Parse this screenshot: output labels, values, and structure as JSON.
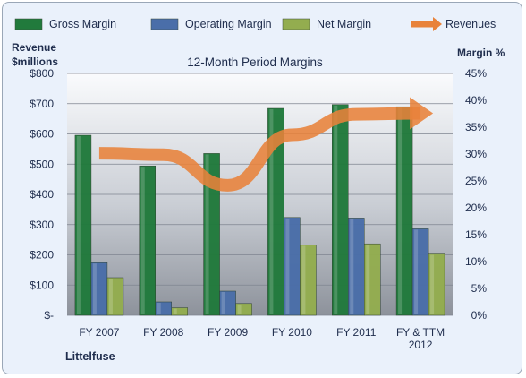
{
  "chart_data": {
    "type": "bar",
    "title": "12-Month Period Margins",
    "left_axis_label_line1": "Revenue",
    "left_axis_label_line2": "$millions",
    "right_axis_label": "Margin %",
    "company": "Littelfuse",
    "categories": [
      [
        "FY 2007"
      ],
      [
        "FY 2008"
      ],
      [
        "FY 2009"
      ],
      [
        "FY 2010"
      ],
      [
        "FY 2011"
      ],
      [
        "FY & TTM",
        "2012"
      ]
    ],
    "left_axis": {
      "ylim": [
        0,
        800
      ],
      "ticks": [
        0,
        100,
        200,
        300,
        400,
        500,
        600,
        700,
        800
      ],
      "tick_labels": [
        "$-",
        "$100",
        "$200",
        "$300",
        "$400",
        "$500",
        "$600",
        "$700",
        "$800"
      ]
    },
    "right_axis": {
      "ylim": [
        0,
        45
      ],
      "ticks": [
        0,
        5,
        10,
        15,
        20,
        25,
        30,
        35,
        40,
        45
      ],
      "tick_labels": [
        "0%",
        "5%",
        "10%",
        "15%",
        "20%",
        "25%",
        "30%",
        "35%",
        "40%",
        "45%"
      ]
    },
    "series": [
      {
        "name": "Gross Margin",
        "axis": "right",
        "color": "#217a3c",
        "values": [
          33.5,
          27.8,
          30.1,
          38.5,
          39.2,
          38.8
        ]
      },
      {
        "name": "Operating Margin",
        "axis": "right",
        "color": "#4a6ea9",
        "values": [
          9.8,
          2.5,
          4.5,
          18.2,
          18.1,
          16.1
        ]
      },
      {
        "name": "Net Margin",
        "axis": "right",
        "color": "#93ad4f",
        "values": [
          7.0,
          1.4,
          2.2,
          13.1,
          13.3,
          11.4
        ]
      },
      {
        "name": "Revenues",
        "axis": "left",
        "type": "line",
        "color": "#e8823a",
        "values": [
          536,
          531,
          430,
          597,
          665,
          668
        ]
      }
    ],
    "grid": true,
    "legend": "top"
  }
}
